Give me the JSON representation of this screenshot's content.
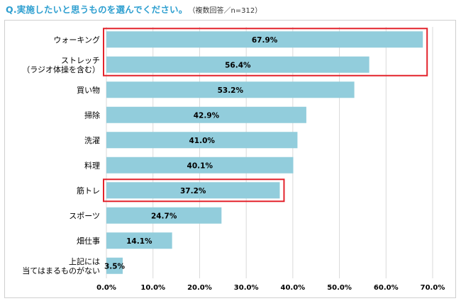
{
  "header": {
    "question": "Q.実施したいと思うものを選んでください。",
    "note": "（複数回答／n=312）"
  },
  "chart_data": {
    "type": "bar",
    "orientation": "horizontal",
    "categories": [
      [
        "ウォーキング"
      ],
      [
        "ストレッチ",
        "（ラジオ体操を含む）"
      ],
      [
        "買い物"
      ],
      [
        "掃除"
      ],
      [
        "洗濯"
      ],
      [
        "料理"
      ],
      [
        "筋トレ"
      ],
      [
        "スポーツ"
      ],
      [
        "畑仕事"
      ],
      [
        "上記には",
        "当てはまるものがない"
      ]
    ],
    "values": [
      67.9,
      56.4,
      53.2,
      42.9,
      41.0,
      40.1,
      37.2,
      24.7,
      14.1,
      3.5
    ],
    "value_labels": [
      "67.9%",
      "56.4%",
      "53.2%",
      "42.9%",
      "41.0%",
      "40.1%",
      "37.2%",
      "24.7%",
      "14.1%",
      "3.5%"
    ],
    "xlim": [
      0,
      70
    ],
    "xticks": [
      0,
      10,
      20,
      30,
      40,
      50,
      60,
      70
    ],
    "xtick_labels": [
      "0.0%",
      "10.0%",
      "20.0%",
      "30.0%",
      "40.0%",
      "50.0%",
      "60.0%",
      "70.0%"
    ],
    "grid": "vertical",
    "highlighted_categories": [
      [
        "ウォーキング",
        "ストレッチ"
      ],
      [
        "筋トレ"
      ]
    ],
    "colors": {
      "bar": "#92cddc",
      "grid": "#d9d9d9",
      "highlight": "#e3232c",
      "text": "#000000"
    }
  }
}
